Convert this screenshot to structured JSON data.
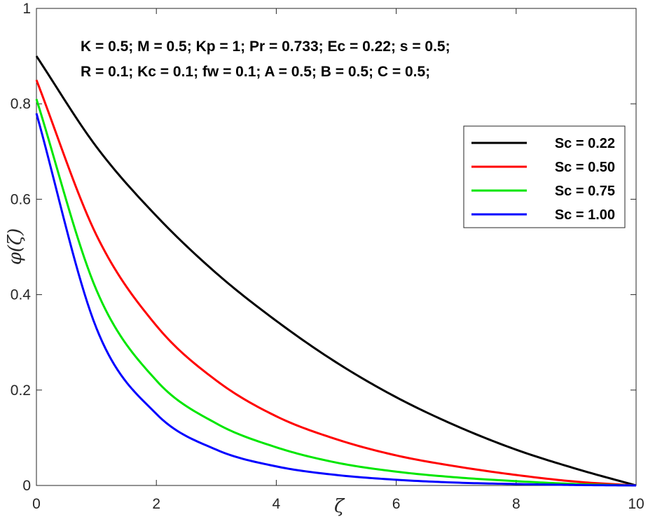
{
  "chart_data": {
    "type": "line",
    "xlabel": "ζ",
    "ylabel": "φ(ζ)",
    "xlim": [
      0,
      10
    ],
    "ylim": [
      0,
      1
    ],
    "xticks": [
      0,
      2,
      4,
      6,
      8,
      10
    ],
    "yticks": [
      0,
      0.2,
      0.4,
      0.6,
      0.8,
      1
    ],
    "xtick_labels": [
      "0",
      "2",
      "4",
      "6",
      "8",
      "10"
    ],
    "ytick_labels": [
      "0",
      "0.2",
      "0.4",
      "0.6",
      "0.8",
      "1"
    ],
    "annotations": [
      "K = 0.5; M = 0.5; Kp = 1; Pr = 0.733; Ec = 0.22; s = 0.5;",
      "R = 0.1; Kc = 0.1; fw = 0.1; A = 0.5; B = 0.5; C = 0.5;"
    ],
    "legend_position": "right",
    "x": [
      0,
      1,
      2,
      3,
      4,
      5,
      6,
      7,
      8,
      9,
      10
    ],
    "series": [
      {
        "name": "Sc = 0.22",
        "color": "#000000",
        "values": [
          0.9,
          0.71,
          0.565,
          0.445,
          0.345,
          0.258,
          0.185,
          0.125,
          0.075,
          0.035,
          0.0
        ]
      },
      {
        "name": "Sc = 0.50",
        "color": "#ff0000",
        "values": [
          0.85,
          0.525,
          0.335,
          0.22,
          0.145,
          0.097,
          0.063,
          0.04,
          0.022,
          0.008,
          0.0
        ]
      },
      {
        "name": "Sc = 0.75",
        "color": "#00e600",
        "values": [
          0.81,
          0.41,
          0.22,
          0.13,
          0.08,
          0.048,
          0.029,
          0.017,
          0.009,
          0.003,
          0.0
        ]
      },
      {
        "name": "Sc = 1.00",
        "color": "#0000ff",
        "values": [
          0.78,
          0.33,
          0.15,
          0.075,
          0.04,
          0.022,
          0.012,
          0.006,
          0.003,
          0.001,
          0.0
        ]
      }
    ]
  }
}
